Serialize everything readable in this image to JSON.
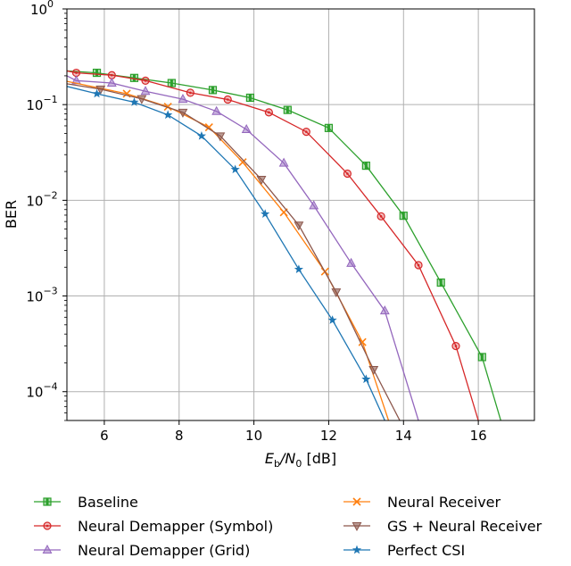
{
  "chart_data": {
    "type": "line",
    "xlabel_main": "E",
    "xlabel_sub_b": "b",
    "xlabel_slash": "/N",
    "xlabel_sub_0": "0",
    "xlabel_unit": " [dB]",
    "ylabel": "BER",
    "xlim": [
      5,
      17.5
    ],
    "ylim": [
      5e-05,
      1
    ],
    "y_scale": "log",
    "grid": true,
    "legend_placement": "below",
    "x_ticks": [
      6,
      8,
      10,
      12,
      14,
      16
    ],
    "y_ticks": [
      {
        "value": 1,
        "base": "10",
        "exp": "0"
      },
      {
        "value": 0.1,
        "base": "10",
        "exp": "−1"
      },
      {
        "value": 0.01,
        "base": "10",
        "exp": "−2"
      },
      {
        "value": 0.001,
        "base": "10",
        "exp": "−3"
      },
      {
        "value": 0.0001,
        "base": "10",
        "exp": "−4"
      }
    ],
    "series": [
      {
        "name": "Baseline",
        "color": "#2ca02c",
        "marker": "square-half",
        "x": [
          5,
          5.8,
          6.8,
          7.8,
          8.9,
          9.9,
          10.9,
          12.0,
          13.0,
          14.0,
          15.0,
          16.1,
          16.6
        ],
        "y": [
          0.225,
          0.215,
          0.19,
          0.168,
          0.142,
          0.118,
          0.088,
          0.057,
          0.023,
          0.0069,
          0.00138,
          0.00023,
          5e-05
        ]
      },
      {
        "name": "Neural Demapper (Symbol)",
        "color": "#d62728",
        "marker": "circle-dot",
        "x": [
          5,
          5.25,
          6.2,
          7.1,
          8.3,
          9.3,
          10.4,
          11.4,
          12.5,
          13.4,
          14.4,
          15.4,
          16.0
        ],
        "y": [
          0.225,
          0.215,
          0.203,
          0.178,
          0.133,
          0.113,
          0.083,
          0.052,
          0.019,
          0.0068,
          0.0021,
          0.0003,
          5e-05
        ]
      },
      {
        "name": "Neural Demapper (Grid)",
        "color": "#9467bd",
        "marker": "triangle-up",
        "x": [
          5,
          5.25,
          6.2,
          7.1,
          8.1,
          9.0,
          9.8,
          10.8,
          11.6,
          12.6,
          13.5,
          14.4
        ],
        "y": [
          0.2,
          0.178,
          0.168,
          0.138,
          0.114,
          0.085,
          0.055,
          0.0245,
          0.0088,
          0.0022,
          0.0007,
          5e-05
        ]
      },
      {
        "name": "Neural Receiver",
        "color": "#ff7f0e",
        "marker": "x",
        "x": [
          5,
          6.6,
          7.7,
          8.8,
          9.7,
          10.8,
          11.9,
          12.9,
          13.6
        ],
        "y": [
          0.175,
          0.13,
          0.095,
          0.058,
          0.025,
          0.0075,
          0.0018,
          0.00033,
          5e-05
        ]
      },
      {
        "name": "GS + Neural Receiver",
        "color": "#8c564b",
        "marker": "triangle-down",
        "x": [
          5,
          5.9,
          7.0,
          8.1,
          9.1,
          10.2,
          11.2,
          12.2,
          13.2,
          13.9
        ],
        "y": [
          0.165,
          0.145,
          0.115,
          0.083,
          0.047,
          0.0165,
          0.0055,
          0.0011,
          0.00017,
          5e-05
        ]
      },
      {
        "name": "Perfect CSI",
        "color": "#1f77b4",
        "marker": "star",
        "x": [
          5,
          5.8,
          6.8,
          7.7,
          8.6,
          9.5,
          10.3,
          11.2,
          12.1,
          13.0,
          13.5
        ],
        "y": [
          0.155,
          0.13,
          0.106,
          0.078,
          0.047,
          0.021,
          0.0072,
          0.0019,
          0.00056,
          0.000135,
          5e-05
        ]
      }
    ]
  }
}
